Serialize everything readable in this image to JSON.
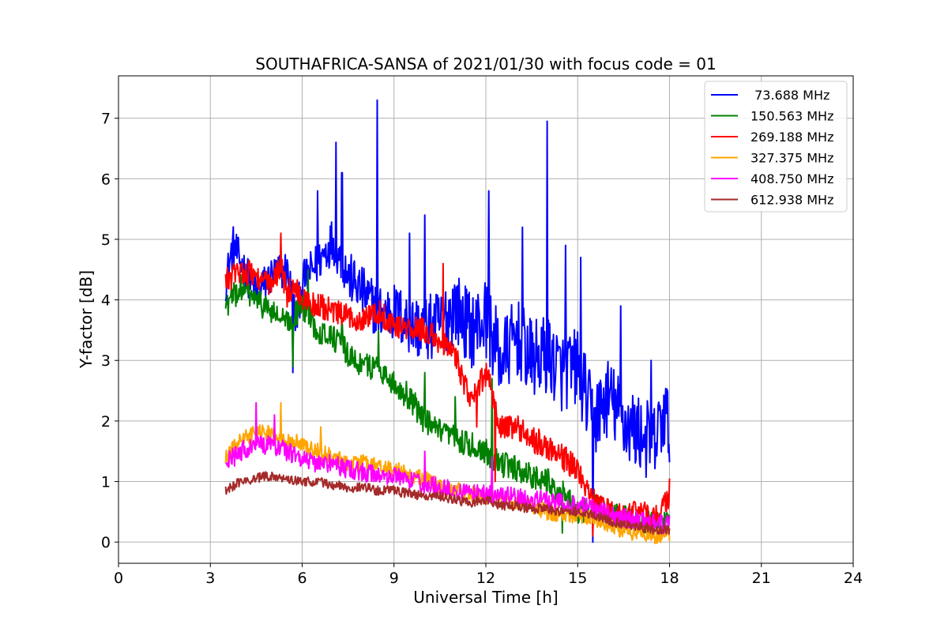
{
  "chart_data": {
    "type": "line",
    "title": "SOUTHAFRICA-SANSA of 2021/01/30 with focus code = 01",
    "xlabel": "Universal Time [h]",
    "ylabel": "Y-factor [dB]",
    "xlim": [
      0,
      24
    ],
    "ylim": [
      -0.35,
      7.7
    ],
    "xticks": [
      0,
      3,
      6,
      9,
      12,
      15,
      18,
      21,
      24
    ],
    "xtick_labels": [
      "0",
      "3",
      "6",
      "9",
      "12",
      "15",
      "18",
      "21",
      "24"
    ],
    "yticks": [
      0,
      1,
      2,
      3,
      4,
      5,
      6,
      7
    ],
    "ytick_labels": [
      "0",
      "1",
      "2",
      "3",
      "4",
      "5",
      "6",
      "7"
    ],
    "grid": true,
    "legend_position": "top-right",
    "series": [
      {
        "name": " 73.688 MHz",
        "color": "#0000ff",
        "x": [
          3.5,
          3.75,
          4.0,
          4.5,
          5.0,
          5.5,
          5.7,
          5.8,
          6.0,
          6.5,
          7.0,
          7.5,
          8.0,
          8.5,
          9.0,
          9.5,
          10.0,
          10.5,
          11.0,
          11.5,
          12.0,
          12.5,
          13.0,
          13.5,
          14.0,
          14.5,
          15.0,
          15.5,
          16.0,
          16.5,
          17.0,
          17.5,
          17.8,
          18.0
        ],
        "y": [
          4.3,
          4.9,
          4.6,
          4.1,
          4.4,
          4.5,
          4.0,
          3.6,
          4.3,
          4.6,
          5.0,
          4.4,
          4.1,
          3.8,
          3.8,
          3.6,
          3.5,
          3.6,
          3.9,
          3.5,
          3.7,
          3.0,
          3.4,
          3.0,
          3.1,
          2.8,
          2.9,
          2.0,
          2.4,
          2.0,
          1.8,
          1.6,
          2.1,
          1.9
        ],
        "peaks": [
          [
            5.7,
            2.8
          ],
          [
            6.5,
            5.8
          ],
          [
            7.1,
            6.6
          ],
          [
            7.3,
            6.1
          ],
          [
            8.45,
            7.3
          ],
          [
            9.5,
            5.1
          ],
          [
            10.0,
            5.4
          ],
          [
            12.1,
            5.8
          ],
          [
            13.2,
            5.2
          ],
          [
            14.0,
            6.95
          ],
          [
            14.6,
            4.9
          ],
          [
            15.1,
            4.7
          ],
          [
            15.5,
            0.0
          ],
          [
            16.4,
            3.9
          ],
          [
            17.4,
            3.0
          ]
        ]
      },
      {
        "name": "150.563 MHz",
        "color": "#008000",
        "x": [
          3.5,
          4.0,
          4.5,
          5.0,
          5.5,
          6.0,
          6.5,
          7.0,
          7.5,
          8.0,
          8.5,
          9.0,
          9.5,
          10.0,
          10.5,
          11.0,
          11.5,
          12.0,
          12.5,
          13.0,
          13.5,
          14.0,
          14.5,
          15.0,
          15.5,
          16.0,
          16.5,
          17.0,
          17.5,
          18.0
        ],
        "y": [
          3.9,
          4.2,
          4.0,
          3.8,
          3.6,
          3.9,
          3.5,
          3.4,
          3.1,
          2.9,
          2.9,
          2.6,
          2.4,
          2.0,
          1.8,
          1.7,
          1.6,
          1.5,
          1.3,
          1.2,
          1.1,
          1.0,
          0.8,
          0.5,
          0.6,
          0.5,
          0.4,
          0.3,
          0.3,
          0.3
        ],
        "peaks": [
          [
            5.7,
            2.9
          ],
          [
            6.2,
            4.5
          ],
          [
            7.3,
            3.6
          ],
          [
            8.5,
            3.5
          ],
          [
            9.5,
            2.2
          ],
          [
            10.0,
            2.8
          ],
          [
            11.0,
            2.4
          ],
          [
            12.2,
            2.7
          ],
          [
            14.5,
            0.15
          ]
        ]
      },
      {
        "name": "269.188 MHz",
        "color": "#ff0000",
        "x": [
          3.5,
          4.0,
          4.5,
          5.0,
          5.3,
          5.5,
          5.8,
          6.0,
          6.5,
          7.0,
          7.5,
          8.0,
          8.5,
          9.0,
          9.5,
          10.0,
          10.5,
          11.0,
          11.5,
          12.0,
          12.5,
          13.0,
          13.5,
          14.0,
          14.5,
          15.0,
          15.5,
          16.0,
          16.5,
          17.0,
          17.5,
          18.0
        ],
        "y": [
          4.3,
          4.5,
          4.4,
          4.2,
          4.6,
          4.1,
          4.2,
          4.0,
          3.9,
          3.8,
          3.7,
          3.7,
          3.8,
          3.6,
          3.5,
          3.5,
          3.3,
          3.1,
          2.3,
          2.8,
          1.9,
          1.9,
          1.7,
          1.6,
          1.4,
          1.2,
          0.7,
          0.5,
          0.4,
          0.5,
          0.4,
          0.7
        ],
        "peaks": [
          [
            5.3,
            5.1
          ],
          [
            10.6,
            4.6
          ],
          [
            11.7,
            1.9
          ],
          [
            12.3,
            1.0
          ],
          [
            15.5,
            0.1
          ],
          [
            18.0,
            1.05
          ]
        ]
      },
      {
        "name": "327.375 MHz",
        "color": "#ffa500",
        "x": [
          3.5,
          4.0,
          4.5,
          5.0,
          5.5,
          6.0,
          6.5,
          7.0,
          7.5,
          8.0,
          8.5,
          9.0,
          9.5,
          10.0,
          10.5,
          11.0,
          11.5,
          12.0,
          12.5,
          13.0,
          13.5,
          14.0,
          14.5,
          15.0,
          15.5,
          16.0,
          16.5,
          17.0,
          17.5,
          18.0
        ],
        "y": [
          1.4,
          1.7,
          1.8,
          1.8,
          1.7,
          1.6,
          1.5,
          1.4,
          1.3,
          1.3,
          1.25,
          1.2,
          1.1,
          1.05,
          0.9,
          0.85,
          0.8,
          0.75,
          0.7,
          0.65,
          0.6,
          0.5,
          0.45,
          0.45,
          0.4,
          0.3,
          0.2,
          0.15,
          0.1,
          0.1
        ],
        "peaks": [
          [
            5.3,
            2.3
          ],
          [
            6.6,
            1.9
          ]
        ]
      },
      {
        "name": "408.750 MHz",
        "color": "#ff00ff",
        "x": [
          3.5,
          4.0,
          4.5,
          5.0,
          5.5,
          6.0,
          6.5,
          7.0,
          7.5,
          8.0,
          8.5,
          9.0,
          9.5,
          10.0,
          10.5,
          11.0,
          11.5,
          12.0,
          12.5,
          13.0,
          13.5,
          14.0,
          14.5,
          15.0,
          15.5,
          16.0,
          16.5,
          17.0,
          17.5,
          18.0
        ],
        "y": [
          1.3,
          1.5,
          1.6,
          1.6,
          1.5,
          1.4,
          1.3,
          1.3,
          1.2,
          1.15,
          1.1,
          1.1,
          1.0,
          0.95,
          0.9,
          0.85,
          0.8,
          0.8,
          0.75,
          0.75,
          0.7,
          0.7,
          0.65,
          0.6,
          0.55,
          0.45,
          0.4,
          0.35,
          0.3,
          0.3
        ],
        "peaks": [
          [
            4.5,
            2.3
          ],
          [
            5.1,
            2.1
          ],
          [
            10.0,
            1.5
          ],
          [
            12.2,
            1.4
          ]
        ]
      },
      {
        "name": "612.938 MHz",
        "color": "#a52a2a",
        "x": [
          3.5,
          4.0,
          4.5,
          5.0,
          5.5,
          6.0,
          6.5,
          7.0,
          7.5,
          8.0,
          8.5,
          9.0,
          9.5,
          10.0,
          10.5,
          11.0,
          11.5,
          12.0,
          12.5,
          13.0,
          13.5,
          14.0,
          14.5,
          15.0,
          15.5,
          16.0,
          16.5,
          17.0,
          17.5,
          18.0
        ],
        "y": [
          0.85,
          1.0,
          1.05,
          1.1,
          1.05,
          1.0,
          1.0,
          0.95,
          0.9,
          0.9,
          0.85,
          0.85,
          0.8,
          0.75,
          0.75,
          0.7,
          0.65,
          0.7,
          0.6,
          0.6,
          0.55,
          0.55,
          0.5,
          0.5,
          0.45,
          0.35,
          0.3,
          0.25,
          0.2,
          0.2
        ],
        "peaks": []
      }
    ]
  }
}
